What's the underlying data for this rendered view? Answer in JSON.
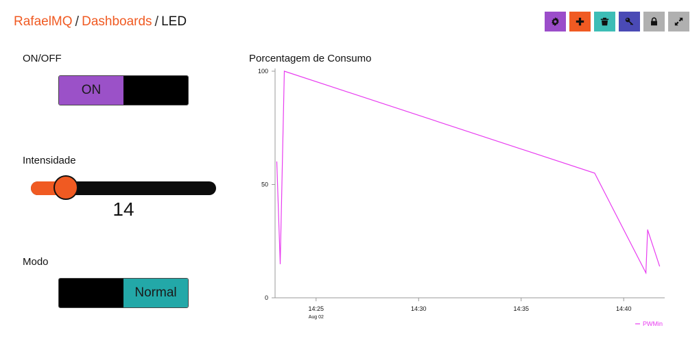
{
  "breadcrumb": {
    "user": "RafaelMQ",
    "section": "Dashboards",
    "current": "LED",
    "separator": "/"
  },
  "toolbar": {
    "buttons": [
      {
        "name": "settings-button",
        "icon": "gear-icon",
        "color": "#9b4dca"
      },
      {
        "name": "add-button",
        "icon": "plus-icon",
        "color": "#f05a22"
      },
      {
        "name": "delete-button",
        "icon": "trash-icon",
        "color": "#3dbdb6"
      },
      {
        "name": "key-button",
        "icon": "key-icon",
        "color": "#4a4ab5"
      },
      {
        "name": "lock-button",
        "icon": "lock-icon",
        "color": "#b0b0b0"
      },
      {
        "name": "fullscreen-button",
        "icon": "expand-icon",
        "color": "#b0b0b0"
      }
    ]
  },
  "widgets": {
    "onoff": {
      "label": "ON/OFF",
      "on_text": "ON",
      "off_text": "",
      "state": "on",
      "on_color": "#9b51c8",
      "off_color": "#000000"
    },
    "intensity": {
      "label": "Intensidade",
      "value": "14",
      "fraction": 0.14,
      "fill_color": "#f05a22",
      "track_color": "#0c0c0c"
    },
    "mode": {
      "label": "Modo",
      "left_text": "",
      "right_text": "Normal",
      "state": "right",
      "active_color": "#23a8a8"
    }
  },
  "chart_title": "Porcentagem de Consumo",
  "chart_data": {
    "type": "line",
    "title": "Porcentagem de Consumo",
    "ylim": [
      0,
      100
    ],
    "y_ticks": [
      0,
      50,
      100
    ],
    "x_ticks": [
      "14:25",
      "14:30",
      "14:35",
      "14:40"
    ],
    "x_sublabel": "Aug 02",
    "xlim": [
      "14:23:00",
      "14:42:00"
    ],
    "grid": false,
    "legend": "bottom-right",
    "series": [
      {
        "name": "PWMin",
        "color": "#e83cf0",
        "points": [
          {
            "x": "14:23:05",
            "y": 60
          },
          {
            "x": "14:23:15",
            "y": 15
          },
          {
            "x": "14:23:27",
            "y": 100
          },
          {
            "x": "14:38:35",
            "y": 55
          },
          {
            "x": "14:41:05",
            "y": 11
          },
          {
            "x": "14:41:10",
            "y": 30
          },
          {
            "x": "14:41:45",
            "y": 14
          }
        ]
      }
    ]
  }
}
